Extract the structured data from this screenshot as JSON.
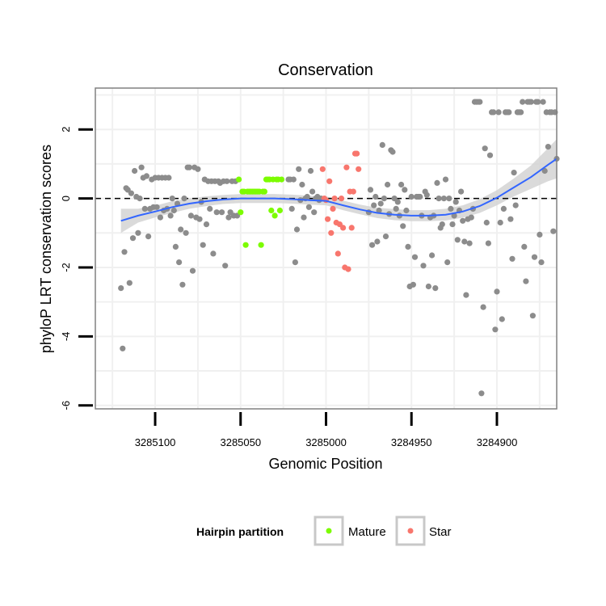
{
  "chart_data": {
    "type": "scatter",
    "title": "Conservation",
    "xlabel": "Genomic Position",
    "ylabel": "phyloP LRT conservation scores",
    "x_reversed": true,
    "xlim": [
      3285135,
      3284865
    ],
    "ylim": [
      -6.1,
      3.2
    ],
    "x_ticks": [
      3285100,
      3285050,
      3285000,
      3284950,
      3284900
    ],
    "x_tick_labels": [
      "3285100",
      "3285050",
      "3285000",
      "3284950",
      "3284900"
    ],
    "y_ticks": [
      -6,
      -4,
      -2,
      0,
      2
    ],
    "y_tick_labels": [
      "-6",
      "-4",
      "-2",
      "0",
      "2"
    ],
    "reference_line": {
      "y": 0,
      "style": "dashed"
    },
    "grid": true,
    "legend": {
      "title": "Hairpin partition",
      "position": "bottom",
      "entries": [
        {
          "label": "Mature",
          "color": "#7cfc00"
        },
        {
          "label": "Star",
          "color": "#f8766d"
        }
      ]
    },
    "colors": {
      "other": "#8c8c8c",
      "mature": "#7cfc00",
      "star": "#f8766d",
      "smooth": "#3366ff",
      "band": "#d3d3d3"
    },
    "series": [
      {
        "name": "",
        "color": "#8c8c8c",
        "points": [
          [
            3285120,
            -2.6
          ],
          [
            3285119,
            -4.35
          ],
          [
            3285118,
            -1.55
          ],
          [
            3285117,
            0.3
          ],
          [
            3285116,
            0.25
          ],
          [
            3285115,
            -2.45
          ],
          [
            3285114,
            0.15
          ],
          [
            3285113,
            -1.15
          ],
          [
            3285112,
            0.8
          ],
          [
            3285111,
            0.05
          ],
          [
            3285110,
            -1.0
          ],
          [
            3285109,
            0.0
          ],
          [
            3285108,
            0.9
          ],
          [
            3285107,
            0.6
          ],
          [
            3285106,
            -0.3
          ],
          [
            3285105,
            0.65
          ],
          [
            3285104,
            -1.1
          ],
          [
            3285103,
            -0.3
          ],
          [
            3285102,
            0.55
          ],
          [
            3285101,
            -0.25
          ],
          [
            3285100,
            0.6
          ],
          [
            3285099,
            -0.25
          ],
          [
            3285098,
            0.6
          ],
          [
            3285097,
            -0.55
          ],
          [
            3285096,
            0.6
          ],
          [
            3285095,
            -0.35
          ],
          [
            3285094,
            0.6
          ],
          [
            3285093,
            -0.3
          ],
          [
            3285092,
            0.6
          ],
          [
            3285091,
            -0.5
          ],
          [
            3285090,
            0.0
          ],
          [
            3285089,
            -0.35
          ],
          [
            3285088,
            -1.4
          ],
          [
            3285087,
            -0.15
          ],
          [
            3285086,
            -1.85
          ],
          [
            3285085,
            -0.9
          ],
          [
            3285084,
            -2.5
          ],
          [
            3285083,
            0.0
          ],
          [
            3285082,
            -1.0
          ],
          [
            3285081,
            0.9
          ],
          [
            3285080,
            0.9
          ],
          [
            3285079,
            -0.5
          ],
          [
            3285078,
            -2.1
          ],
          [
            3285077,
            0.9
          ],
          [
            3285076,
            -0.55
          ],
          [
            3285075,
            0.85
          ],
          [
            3285074,
            -0.6
          ],
          [
            3285073,
            -0.1
          ],
          [
            3285072,
            -1.35
          ],
          [
            3285071,
            0.55
          ],
          [
            3285070,
            -0.75
          ],
          [
            3285069,
            0.5
          ],
          [
            3285068,
            -0.3
          ],
          [
            3285067,
            0.5
          ],
          [
            3285066,
            -1.6
          ],
          [
            3285065,
            0.5
          ],
          [
            3285064,
            -0.4
          ],
          [
            3285063,
            0.5
          ],
          [
            3285062,
            0.45
          ],
          [
            3285061,
            -0.4
          ],
          [
            3285060,
            0.5
          ],
          [
            3285059,
            -1.95
          ],
          [
            3285058,
            0.5
          ],
          [
            3285057,
            -0.55
          ],
          [
            3285056,
            -0.4
          ],
          [
            3285055,
            0.5
          ],
          [
            3285054,
            -0.5
          ],
          [
            3285053,
            0.5
          ],
          [
            3285052,
            -0.5
          ],
          [
            3285022,
            0.55
          ],
          [
            3285021,
            0.55
          ],
          [
            3285020,
            -0.3
          ],
          [
            3285019,
            0.55
          ],
          [
            3285018,
            -1.85
          ],
          [
            3285017,
            -0.9
          ],
          [
            3285016,
            0.85
          ],
          [
            3285015,
            -0.05
          ],
          [
            3285014,
            0.4
          ],
          [
            3285013,
            -0.55
          ],
          [
            3285012,
            0.0
          ],
          [
            3285011,
            0.05
          ],
          [
            3285010,
            -0.25
          ],
          [
            3285009,
            0.8
          ],
          [
            3285008,
            0.2
          ],
          [
            3285007,
            -0.4
          ],
          [
            3285006,
            0.0
          ],
          [
            3285005,
            0.05
          ],
          [
            3285004,
            -0.05
          ],
          [
            3285003,
            0.0
          ],
          [
            3284975,
            -0.4
          ],
          [
            3284974,
            0.25
          ],
          [
            3284973,
            -1.35
          ],
          [
            3284972,
            -0.2
          ],
          [
            3284971,
            0.05
          ],
          [
            3284970,
            -1.25
          ],
          [
            3284969,
            -0.35
          ],
          [
            3284968,
            -0.15
          ],
          [
            3284967,
            1.55
          ],
          [
            3284966,
            0.0
          ],
          [
            3284965,
            -1.1
          ],
          [
            3284964,
            0.4
          ],
          [
            3284963,
            -0.45
          ],
          [
            3284962,
            1.4
          ],
          [
            3284961,
            1.35
          ],
          [
            3284960,
            0.0
          ],
          [
            3284959,
            -0.3
          ],
          [
            3284958,
            -0.1
          ],
          [
            3284957,
            -0.5
          ],
          [
            3284956,
            0.4
          ],
          [
            3284955,
            -0.8
          ],
          [
            3284954,
            0.25
          ],
          [
            3284953,
            -0.35
          ],
          [
            3284952,
            -1.4
          ],
          [
            3284951,
            -2.55
          ],
          [
            3284950,
            0.05
          ],
          [
            3284949,
            -2.5
          ],
          [
            3284948,
            -1.7
          ],
          [
            3284947,
            0.05
          ],
          [
            3284946,
            0.05
          ],
          [
            3284945,
            0.05
          ],
          [
            3284944,
            -0.5
          ],
          [
            3284943,
            -1.95
          ],
          [
            3284942,
            0.2
          ],
          [
            3284941,
            0.1
          ],
          [
            3284940,
            -2.55
          ],
          [
            3284939,
            -0.55
          ],
          [
            3284938,
            -1.65
          ],
          [
            3284937,
            -0.5
          ],
          [
            3284936,
            -2.6
          ],
          [
            3284935,
            0.45
          ],
          [
            3284934,
            0.0
          ],
          [
            3284933,
            -0.85
          ],
          [
            3284932,
            -0.75
          ],
          [
            3284931,
            0.0
          ],
          [
            3284930,
            0.55
          ],
          [
            3284929,
            -1.85
          ],
          [
            3284928,
            0.0
          ],
          [
            3284927,
            -0.3
          ],
          [
            3284926,
            -0.75
          ],
          [
            3284925,
            -0.5
          ],
          [
            3284924,
            -0.1
          ],
          [
            3284923,
            -1.2
          ],
          [
            3284922,
            -0.35
          ],
          [
            3284921,
            0.2
          ],
          [
            3284920,
            -0.65
          ],
          [
            3284919,
            -1.25
          ],
          [
            3284918,
            -2.8
          ],
          [
            3284917,
            -0.6
          ],
          [
            3284916,
            -1.3
          ],
          [
            3284915,
            -0.55
          ],
          [
            3284914,
            -0.3
          ],
          [
            3284913,
            2.8
          ],
          [
            3284912,
            2.8
          ],
          [
            3284911,
            2.8
          ],
          [
            3284910,
            2.8
          ],
          [
            3284909,
            -5.65
          ],
          [
            3284908,
            -3.15
          ],
          [
            3284907,
            1.45
          ],
          [
            3284906,
            -0.7
          ],
          [
            3284905,
            -1.3
          ],
          [
            3284904,
            1.25
          ],
          [
            3284903,
            2.5
          ],
          [
            3284902,
            2.5
          ],
          [
            3284901,
            -3.8
          ],
          [
            3284900,
            -2.7
          ],
          [
            3284899,
            2.5
          ],
          [
            3284898,
            -0.7
          ],
          [
            3284897,
            -3.5
          ],
          [
            3284896,
            -0.3
          ],
          [
            3284895,
            2.5
          ],
          [
            3284894,
            2.5
          ],
          [
            3284893,
            2.5
          ],
          [
            3284892,
            -0.6
          ],
          [
            3284891,
            -1.75
          ],
          [
            3284890,
            0.75
          ],
          [
            3284889,
            -0.2
          ],
          [
            3284888,
            2.5
          ],
          [
            3284887,
            2.5
          ],
          [
            3284886,
            2.5
          ],
          [
            3284885,
            2.8
          ],
          [
            3284884,
            -1.4
          ],
          [
            3284883,
            -2.4
          ],
          [
            3284882,
            2.8
          ],
          [
            3284881,
            2.8
          ],
          [
            3284880,
            2.8
          ],
          [
            3284879,
            -3.4
          ],
          [
            3284878,
            -1.7
          ],
          [
            3284877,
            2.8
          ],
          [
            3284876,
            2.8
          ],
          [
            3284875,
            -1.05
          ],
          [
            3284874,
            -1.85
          ],
          [
            3284873,
            2.8
          ],
          [
            3284872,
            0.8
          ],
          [
            3284871,
            2.5
          ],
          [
            3284870,
            1.5
          ],
          [
            3284869,
            2.5
          ],
          [
            3284868,
            2.5
          ],
          [
            3284867,
            -0.95
          ],
          [
            3284866,
            2.5
          ],
          [
            3284865,
            1.15
          ]
        ]
      },
      {
        "name": "Mature",
        "color": "#7cfc00",
        "points": [
          [
            3285051,
            0.55
          ],
          [
            3285050,
            -0.4
          ],
          [
            3285049,
            0.2
          ],
          [
            3285048,
            0.2
          ],
          [
            3285047,
            -1.35
          ],
          [
            3285046,
            0.2
          ],
          [
            3285045,
            0.2
          ],
          [
            3285044,
            0.2
          ],
          [
            3285043,
            0.2
          ],
          [
            3285042,
            0.2
          ],
          [
            3285041,
            0.2
          ],
          [
            3285040,
            0.2
          ],
          [
            3285039,
            0.2
          ],
          [
            3285038,
            -1.35
          ],
          [
            3285037,
            0.2
          ],
          [
            3285036,
            0.2
          ],
          [
            3285035,
            0.55
          ],
          [
            3285034,
            0.55
          ],
          [
            3285033,
            0.55
          ],
          [
            3285032,
            -0.35
          ],
          [
            3285031,
            0.55
          ],
          [
            3285030,
            -0.5
          ],
          [
            3285029,
            0.55
          ],
          [
            3285028,
            0.55
          ],
          [
            3285027,
            -0.35
          ],
          [
            3285026,
            0.55
          ]
        ]
      },
      {
        "name": "Star",
        "color": "#f8766d",
        "points": [
          [
            3285002,
            0.85
          ],
          [
            3285001,
            0.0
          ],
          [
            3285000,
            -0.05
          ],
          [
            3284999,
            -0.6
          ],
          [
            3284998,
            0.5
          ],
          [
            3284997,
            -1.0
          ],
          [
            3284996,
            -0.3
          ],
          [
            3284995,
            0.0
          ],
          [
            3284994,
            -0.7
          ],
          [
            3284993,
            -1.6
          ],
          [
            3284992,
            -0.75
          ],
          [
            3284991,
            0.0
          ],
          [
            3284990,
            -0.85
          ],
          [
            3284989,
            -2.0
          ],
          [
            3284988,
            0.9
          ],
          [
            3284987,
            -2.05
          ],
          [
            3284986,
            0.2
          ],
          [
            3284985,
            -0.85
          ],
          [
            3284984,
            0.2
          ],
          [
            3284983,
            1.3
          ],
          [
            3284982,
            1.3
          ],
          [
            3284981,
            0.85
          ]
        ]
      }
    ],
    "smooth": {
      "x": [
        3285120,
        3285110,
        3285100,
        3285090,
        3285080,
        3285070,
        3285060,
        3285050,
        3285040,
        3285030,
        3285020,
        3285010,
        3285000,
        3284990,
        3284980,
        3284970,
        3284960,
        3284950,
        3284940,
        3284930,
        3284920,
        3284910,
        3284900,
        3284890,
        3284880,
        3284870,
        3284865
      ],
      "y": [
        -0.65,
        -0.5,
        -0.38,
        -0.25,
        -0.15,
        -0.08,
        -0.03,
        0.0,
        0.0,
        0.0,
        -0.02,
        -0.05,
        -0.07,
        -0.2,
        -0.32,
        -0.42,
        -0.47,
        -0.5,
        -0.5,
        -0.47,
        -0.38,
        -0.22,
        0.02,
        0.32,
        0.62,
        0.98,
        1.15
      ],
      "lower": [
        -1.0,
        -0.7,
        -0.55,
        -0.42,
        -0.3,
        -0.22,
        -0.16,
        -0.13,
        -0.13,
        -0.13,
        -0.15,
        -0.18,
        -0.2,
        -0.34,
        -0.46,
        -0.57,
        -0.63,
        -0.66,
        -0.66,
        -0.64,
        -0.56,
        -0.42,
        -0.2,
        0.06,
        0.28,
        0.5,
        0.58
      ],
      "upper": [
        -0.3,
        -0.3,
        -0.21,
        -0.08,
        0.0,
        0.06,
        0.1,
        0.13,
        0.13,
        0.13,
        0.11,
        0.08,
        0.06,
        -0.06,
        -0.18,
        -0.27,
        -0.31,
        -0.34,
        -0.34,
        -0.3,
        -0.2,
        -0.02,
        0.24,
        0.58,
        0.96,
        1.46,
        1.72
      ]
    }
  }
}
